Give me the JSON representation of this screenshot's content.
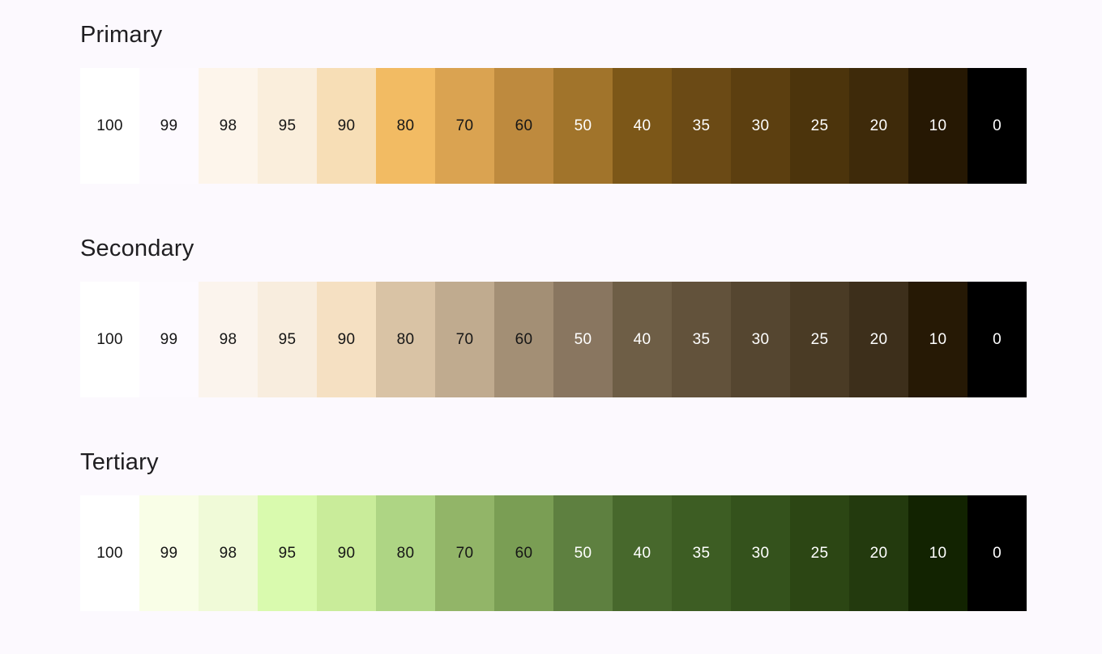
{
  "background": "#FCF9FE",
  "heading_color": "#1F1E21",
  "dark_label_color": "#161616",
  "light_label_color": "#FFFFFF",
  "palettes": [
    {
      "name": "Primary",
      "swatches": [
        {
          "tone": "100",
          "color": "#FFFFFF",
          "label_color": "#161616"
        },
        {
          "tone": "99",
          "color": "#FDFAFF",
          "label_color": "#161616"
        },
        {
          "tone": "98",
          "color": "#FDF5EB",
          "label_color": "#161616"
        },
        {
          "tone": "95",
          "color": "#FAEEDC",
          "label_color": "#161616"
        },
        {
          "tone": "90",
          "color": "#F7DEB6",
          "label_color": "#161616"
        },
        {
          "tone": "80",
          "color": "#F2BB63",
          "label_color": "#161616"
        },
        {
          "tone": "70",
          "color": "#DAA351",
          "label_color": "#161616"
        },
        {
          "tone": "60",
          "color": "#BE8A3E",
          "label_color": "#161616"
        },
        {
          "tone": "50",
          "color": "#A1742B",
          "label_color": "#FFFFFF"
        },
        {
          "tone": "40",
          "color": "#7C5718",
          "label_color": "#FFFFFF"
        },
        {
          "tone": "35",
          "color": "#6B4A15",
          "label_color": "#FFFFFF"
        },
        {
          "tone": "30",
          "color": "#5C3F10",
          "label_color": "#FFFFFF"
        },
        {
          "tone": "25",
          "color": "#4C340C",
          "label_color": "#FFFFFF"
        },
        {
          "tone": "20",
          "color": "#3E2A0A",
          "label_color": "#FFFFFF"
        },
        {
          "tone": "10",
          "color": "#261803",
          "label_color": "#FFFFFF"
        },
        {
          "tone": "0",
          "color": "#000000",
          "label_color": "#FFFFFF"
        }
      ]
    },
    {
      "name": "Secondary",
      "swatches": [
        {
          "tone": "100",
          "color": "#FFFFFF",
          "label_color": "#161616"
        },
        {
          "tone": "99",
          "color": "#FDFAFF",
          "label_color": "#161616"
        },
        {
          "tone": "98",
          "color": "#FBF4ED",
          "label_color": "#161616"
        },
        {
          "tone": "95",
          "color": "#F8EDDE",
          "label_color": "#161616"
        },
        {
          "tone": "90",
          "color": "#F5E0C2",
          "label_color": "#161616"
        },
        {
          "tone": "80",
          "color": "#D9C3A5",
          "label_color": "#161616"
        },
        {
          "tone": "70",
          "color": "#C0AB8F",
          "label_color": "#161616"
        },
        {
          "tone": "60",
          "color": "#A38F75",
          "label_color": "#161616"
        },
        {
          "tone": "50",
          "color": "#897660",
          "label_color": "#FFFFFF"
        },
        {
          "tone": "40",
          "color": "#6E5E46",
          "label_color": "#FFFFFF"
        },
        {
          "tone": "35",
          "color": "#62523B",
          "label_color": "#FFFFFF"
        },
        {
          "tone": "30",
          "color": "#554630",
          "label_color": "#FFFFFF"
        },
        {
          "tone": "25",
          "color": "#4A3B25",
          "label_color": "#FFFFFF"
        },
        {
          "tone": "20",
          "color": "#3D2F1B",
          "label_color": "#FFFFFF"
        },
        {
          "tone": "10",
          "color": "#261905",
          "label_color": "#FFFFFF"
        },
        {
          "tone": "0",
          "color": "#000000",
          "label_color": "#FFFFFF"
        }
      ]
    },
    {
      "name": "Tertiary",
      "swatches": [
        {
          "tone": "100",
          "color": "#FFFFFF",
          "label_color": "#161616"
        },
        {
          "tone": "99",
          "color": "#F9FEE7",
          "label_color": "#161616"
        },
        {
          "tone": "98",
          "color": "#F0FAD8",
          "label_color": "#161616"
        },
        {
          "tone": "95",
          "color": "#D9FAAE",
          "label_color": "#161616"
        },
        {
          "tone": "90",
          "color": "#C9EC9A",
          "label_color": "#161616"
        },
        {
          "tone": "80",
          "color": "#AED584",
          "label_color": "#161616"
        },
        {
          "tone": "70",
          "color": "#92B568",
          "label_color": "#161616"
        },
        {
          "tone": "60",
          "color": "#7A9E54",
          "label_color": "#161616"
        },
        {
          "tone": "50",
          "color": "#5E8040",
          "label_color": "#FFFFFF"
        },
        {
          "tone": "40",
          "color": "#47682C",
          "label_color": "#FFFFFF"
        },
        {
          "tone": "35",
          "color": "#3D5D23",
          "label_color": "#FFFFFF"
        },
        {
          "tone": "30",
          "color": "#34521C",
          "label_color": "#FFFFFF"
        },
        {
          "tone": "25",
          "color": "#2C4614",
          "label_color": "#FFFFFF"
        },
        {
          "tone": "20",
          "color": "#233A0E",
          "label_color": "#FFFFFF"
        },
        {
          "tone": "10",
          "color": "#122301",
          "label_color": "#FFFFFF"
        },
        {
          "tone": "0",
          "color": "#000000",
          "label_color": "#FFFFFF"
        }
      ]
    }
  ]
}
